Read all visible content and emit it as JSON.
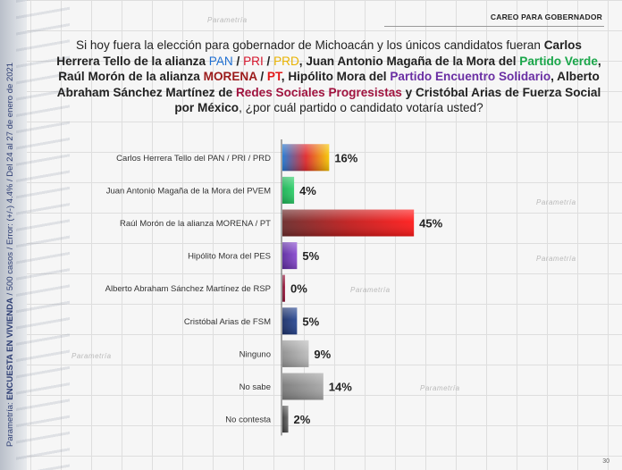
{
  "header": {
    "section": "CAREO PARA GOBERNADOR"
  },
  "side_note": {
    "prefix": "Parametría: ",
    "bold": "ENCUESTA EN VIVIENDA",
    "rest": " / 500 casos / Error: (+/-) 4.4% / Del 24 al 27 de enero de 2021"
  },
  "question": {
    "p1": "Si hoy fuera la elección para gobernador de Michoacán y los únicos candidatos fueran ",
    "p2": "Carlos Herrera Tello de la alianza ",
    "pan": "PAN",
    "sep1": " / ",
    "pri": "PRI",
    "sep2": " / ",
    "prd": "PRD",
    "p3": ",  Juan Antonio Magaña de la Mora del ",
    "verde": "Partido Verde",
    "p4": ", Raúl Morón de la alianza ",
    "morena": "MORENA",
    "sep3": " / ",
    "pt": "PT",
    "p5": ", Hipólito Mora del ",
    "pes": "Partido Encuentro Solidario",
    "p6": ", Alberto Abraham Sánchez Martínez de ",
    "rsp": "Redes Sociales Progresistas",
    "p7": " y Cristóbal Arias de Fuerza Social por México",
    "p8": ", ¿por cuál partido o candidato votaría usted?"
  },
  "watermark": "Parametría",
  "page_number": "30",
  "chart_data": {
    "type": "bar",
    "orientation": "horizontal",
    "categories": [
      "Carlos Herrera Tello del PAN / PRI / PRD",
      "Juan Antonio Magaña de la Mora del PVEM",
      "Raúl Morón de la alianza MORENA / PT",
      "Hipólito Mora del PES",
      "Alberto Abraham Sánchez Martínez de RSP",
      "Cristóbal Arias de FSM",
      "Ninguno",
      "No sabe",
      "No contesta"
    ],
    "values": [
      16,
      4,
      45,
      5,
      0,
      5,
      9,
      14,
      2
    ],
    "value_labels": [
      "16%",
      "4%",
      "45%",
      "5%",
      "0%",
      "5%",
      "9%",
      "14%",
      "2%"
    ],
    "bar_colors": [
      [
        "#1e78d4",
        "#e0282c",
        "#f5c800"
      ],
      [
        "#1bb154",
        "#2fcf6a"
      ],
      [
        "#6b2a2a",
        "#c01b1b",
        "#ff1a1a"
      ],
      [
        "#5b2a9e",
        "#8a4bd0"
      ],
      [
        "#7a1530",
        "#a51d45"
      ],
      [
        "#1b2f66",
        "#2b4a95"
      ],
      [
        "#8f8f8f",
        "#bdbdbd"
      ],
      [
        "#7a7a7a",
        "#a8a8a8"
      ],
      [
        "#3a3a3a",
        "#6a6a6a"
      ]
    ],
    "xlim": [
      0,
      50
    ]
  }
}
